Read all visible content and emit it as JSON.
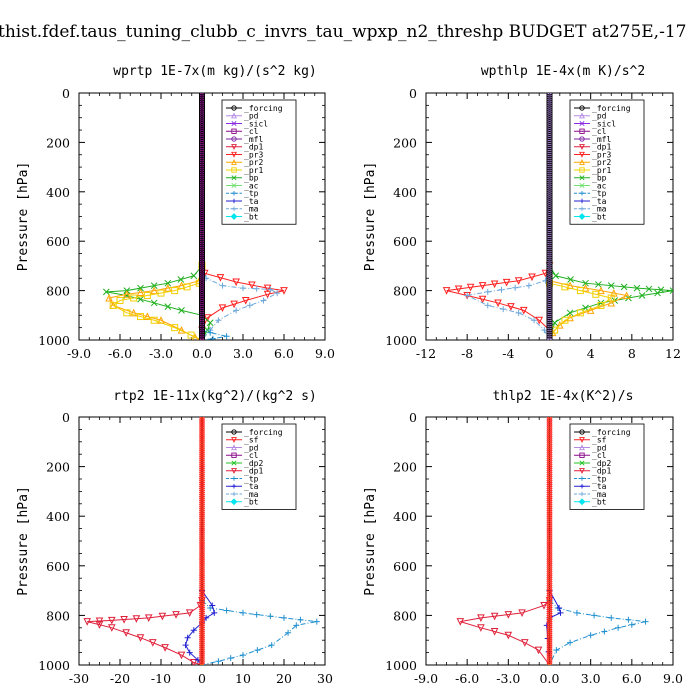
{
  "figure_title": "thist.fdef.taus_tuning_clubb_c_invrs_tau_wpxp_n2_threshp  BUDGET at275E,-17",
  "colors": {
    "_forcing": "#000000",
    "_pd": "#b48ce6",
    "_sicl": "#8a2be2",
    "_cl": "#8b0a8b",
    "_mfl": "#7a1fa2",
    "_dp1": "#e0203a",
    "_pr3": "#ff2020",
    "_pr2": "#ffa500",
    "_pr1": "#f0d000",
    "_bp": "#20b020",
    "_ac": "#70e070",
    "_tp": "#2090d0",
    "_ta": "#2020d0",
    "_ma": "#6fa8dc",
    "_bt": "#00e5ee",
    "_sf": "#ff2020",
    "_dp2": "#22c422"
  },
  "chart_data": [
    {
      "type": "line",
      "title": "wprtp  1E-7x(m kg)/(s^2 kg)",
      "ylabel": "Pressure [hPa]",
      "xlim": [
        -9,
        9
      ],
      "ylim": [
        1000,
        0
      ],
      "xticks": [
        "-9.0",
        "-6.0",
        "-3.0",
        "0.0",
        "3.0",
        "6.0",
        "9.0"
      ],
      "yticks": [
        "0",
        "200",
        "400",
        "600",
        "800",
        "1000"
      ],
      "legend": [
        "_forcing",
        "_pd",
        "_sicl",
        "_cl",
        "_mfl",
        "_dp1",
        "_pr3",
        "_pr2",
        "_pr1",
        "_bp",
        "_ac",
        "_tp",
        "_ta",
        "_ma",
        "_bt"
      ],
      "legend_position": "top-right",
      "series": [
        {
          "name": "_pr3",
          "points": [
            [
              0,
              700
            ],
            [
              0.2,
              730
            ],
            [
              2.5,
              765
            ],
            [
              4.8,
              790
            ],
            [
              6,
              800
            ],
            [
              4.8,
              815
            ],
            [
              3.2,
              840
            ],
            [
              1.5,
              870
            ],
            [
              0.4,
              910
            ],
            [
              0,
              960
            ],
            [
              0,
              1000
            ]
          ]
        },
        {
          "name": "_bp",
          "points": [
            [
              0,
              700
            ],
            [
              -0.6,
              740
            ],
            [
              -2.5,
              770
            ],
            [
              -5.5,
              800
            ],
            [
              -7,
              805
            ],
            [
              -5.5,
              820
            ],
            [
              -3.5,
              850
            ],
            [
              -1.5,
              880
            ],
            [
              0,
              900
            ],
            [
              0.6,
              930
            ],
            [
              0.4,
              960
            ],
            [
              0,
              1000
            ]
          ]
        },
        {
          "name": "_pr2",
          "points": [
            [
              0,
              700
            ],
            [
              -0.2,
              760
            ],
            [
              -1.5,
              780
            ],
            [
              -3.5,
              800
            ],
            [
              -5.5,
              815
            ],
            [
              -6.8,
              830
            ],
            [
              -6.5,
              860
            ],
            [
              -5,
              890
            ],
            [
              -3,
              920
            ],
            [
              -1.5,
              960
            ],
            [
              -0.5,
              990
            ],
            [
              0,
              1000
            ]
          ]
        },
        {
          "name": "_pr1",
          "points": [
            [
              0,
              700
            ],
            [
              -0.2,
              770
            ],
            [
              -2,
              800
            ],
            [
              -4,
              820
            ],
            [
              -6,
              840
            ],
            [
              -6.5,
              860
            ],
            [
              -5.5,
              890
            ],
            [
              -3.5,
              920
            ],
            [
              -2,
              950
            ],
            [
              -0.8,
              980
            ],
            [
              0,
              1000
            ]
          ]
        },
        {
          "name": "_ma",
          "points": [
            [
              0,
              700
            ],
            [
              0.3,
              750
            ],
            [
              1.5,
              780
            ],
            [
              3,
              790
            ],
            [
              5,
              795
            ],
            [
              5.5,
              810
            ],
            [
              4.5,
              840
            ],
            [
              2.5,
              880
            ],
            [
              1.2,
              920
            ],
            [
              0.6,
              960
            ],
            [
              0,
              1000
            ]
          ]
        },
        {
          "name": "_tp",
          "points": [
            [
              0,
              960
            ],
            [
              0.6,
              970
            ],
            [
              1.8,
              985
            ],
            [
              0.8,
              995
            ],
            [
              0,
              1000
            ]
          ]
        },
        {
          "name": "_forcing",
          "points": [
            [
              0,
              0
            ],
            [
              0,
              1000
            ]
          ]
        }
      ]
    },
    {
      "type": "line",
      "title": "wpthlp  1E-4x(m K)/s^2",
      "ylabel": "Pressure [hPa]",
      "xlim": [
        -12,
        12
      ],
      "ylim": [
        1000,
        0
      ],
      "xticks": [
        "-12",
        "-8",
        "-4",
        "0",
        "4",
        "8",
        "12"
      ],
      "yticks": [
        "0",
        "200",
        "400",
        "600",
        "800",
        "1000"
      ],
      "legend": [
        "_forcing",
        "_pd",
        "_sicl",
        "_cl",
        "_mfl",
        "_dp1",
        "_pr3",
        "_pr2",
        "_pr1",
        "_bp",
        "_ac",
        "_tp",
        "_ta",
        "_ma",
        "_bt"
      ],
      "legend_position": "top-right",
      "series": [
        {
          "name": "_pr3",
          "points": [
            [
              0,
              700
            ],
            [
              -0.4,
              730
            ],
            [
              -3,
              760
            ],
            [
              -6.5,
              780
            ],
            [
              -10,
              800
            ],
            [
              -8,
              820
            ],
            [
              -5,
              850
            ],
            [
              -2.5,
              880
            ],
            [
              -1,
              920
            ],
            [
              0,
              960
            ],
            [
              0,
              1000
            ]
          ]
        },
        {
          "name": "_bp",
          "points": [
            [
              0,
              700
            ],
            [
              0.6,
              740
            ],
            [
              3.5,
              770
            ],
            [
              8.5,
              790
            ],
            [
              12,
              800
            ],
            [
              9,
              820
            ],
            [
              5,
              850
            ],
            [
              2,
              890
            ],
            [
              0.5,
              930
            ],
            [
              0,
              1000
            ]
          ]
        },
        {
          "name": "_pr2",
          "points": [
            [
              0,
              760
            ],
            [
              2,
              780
            ],
            [
              5,
              800
            ],
            [
              7.5,
              820
            ],
            [
              6,
              850
            ],
            [
              4,
              880
            ],
            [
              2,
              910
            ],
            [
              1,
              940
            ],
            [
              0.3,
              970
            ],
            [
              0,
              1000
            ]
          ]
        },
        {
          "name": "_pr1",
          "points": [
            [
              0,
              770
            ],
            [
              3,
              800
            ],
            [
              6,
              830
            ],
            [
              5,
              860
            ],
            [
              3,
              890
            ],
            [
              1.5,
              920
            ],
            [
              0.5,
              960
            ],
            [
              0,
              1000
            ]
          ]
        },
        {
          "name": "_ma",
          "points": [
            [
              0,
              700
            ],
            [
              -0.4,
              760
            ],
            [
              -2,
              780
            ],
            [
              -6,
              805
            ],
            [
              -8,
              820
            ],
            [
              -6,
              860
            ],
            [
              -3,
              890
            ],
            [
              -1.5,
              920
            ],
            [
              -0.5,
              960
            ],
            [
              0,
              1000
            ]
          ]
        },
        {
          "name": "_pd",
          "points": [
            [
              0,
              0
            ],
            [
              0,
              1000
            ]
          ]
        },
        {
          "name": "_forcing",
          "points": [
            [
              0,
              0
            ],
            [
              0,
              1000
            ]
          ]
        }
      ]
    },
    {
      "type": "line",
      "title": "rtp2  1E-11x(kg^2)/(kg^2 s)",
      "ylabel": "Pressure [hPa]",
      "xlim": [
        -30,
        30
      ],
      "ylim": [
        1000,
        0
      ],
      "xticks": [
        "-30",
        "-20",
        "-10",
        "0",
        "10",
        "20",
        "30"
      ],
      "yticks": [
        "0",
        "200",
        "400",
        "600",
        "800",
        "1000"
      ],
      "legend": [
        "_forcing",
        "_sf",
        "_pd",
        "_cl",
        "_dp2",
        "_dp1",
        "_tp",
        "_ta",
        "_ma",
        "_bt"
      ],
      "legend_position": "top-right",
      "series": [
        {
          "name": "_dp1",
          "points": [
            [
              0,
              740
            ],
            [
              -0.4,
              760
            ],
            [
              -3,
              790
            ],
            [
              -13,
              810
            ],
            [
              -22,
              820
            ],
            [
              -28,
              825
            ],
            [
              -22,
              850
            ],
            [
              -15,
              890
            ],
            [
              -9,
              930
            ],
            [
              -5,
              960
            ],
            [
              -2,
              990
            ],
            [
              0,
              1000
            ]
          ]
        },
        {
          "name": "_tp",
          "points": [
            [
              0,
              740
            ],
            [
              2,
              770
            ],
            [
              10,
              790
            ],
            [
              20,
              810
            ],
            [
              28,
              825
            ],
            [
              23,
              840
            ],
            [
              21,
              870
            ],
            [
              17,
              920
            ],
            [
              10,
              960
            ],
            [
              4,
              985
            ],
            [
              0,
              1000
            ]
          ]
        },
        {
          "name": "_ta",
          "points": [
            [
              0,
              700
            ],
            [
              2.5,
              760
            ],
            [
              3,
              790
            ],
            [
              1,
              810
            ],
            [
              0,
              830
            ],
            [
              -2,
              860
            ],
            [
              -3.5,
              890
            ],
            [
              -4,
              920
            ],
            [
              -3,
              950
            ],
            [
              -1,
              980
            ],
            [
              0,
              1000
            ]
          ]
        },
        {
          "name": "_forcing",
          "points": [
            [
              0,
              0
            ],
            [
              0,
              1000
            ]
          ]
        }
      ]
    },
    {
      "type": "line",
      "title": "thlp2  1E-4x(K^2)/s",
      "ylabel": "Pressure [hPa]",
      "xlim": [
        -9,
        9
      ],
      "ylim": [
        1000,
        0
      ],
      "xticks": [
        "-9.0",
        "-6.0",
        "-3.0",
        "0.0",
        "3.0",
        "6.0",
        "9.0"
      ],
      "yticks": [
        "0",
        "200",
        "400",
        "600",
        "800",
        "1000"
      ],
      "legend": [
        "_forcing",
        "_sf",
        "_pd",
        "_cl",
        "_dp2",
        "_dp1",
        "_tp",
        "_ta",
        "_ma",
        "_bt"
      ],
      "legend_position": "top-right",
      "series": [
        {
          "name": "_dp1",
          "points": [
            [
              0,
              740
            ],
            [
              -0.4,
              760
            ],
            [
              -2,
              790
            ],
            [
              -5,
              810
            ],
            [
              -6.5,
              825
            ],
            [
              -5,
              850
            ],
            [
              -3,
              880
            ],
            [
              -1.8,
              910
            ],
            [
              -0.8,
              940
            ],
            [
              0,
              1000
            ]
          ]
        },
        {
          "name": "_tp",
          "points": [
            [
              0,
              740
            ],
            [
              0.6,
              770
            ],
            [
              2,
              790
            ],
            [
              4.5,
              810
            ],
            [
              7,
              825
            ],
            [
              5,
              850
            ],
            [
              3,
              880
            ],
            [
              1.5,
              910
            ],
            [
              0.5,
              940
            ],
            [
              0,
              1000
            ]
          ]
        },
        {
          "name": "_ta",
          "points": [
            [
              0,
              700
            ],
            [
              0.7,
              770
            ],
            [
              0.8,
              790
            ],
            [
              0,
              810
            ],
            [
              -0.2,
              840
            ],
            [
              0,
              1000
            ]
          ]
        },
        {
          "name": "_forcing",
          "points": [
            [
              0,
              0
            ],
            [
              0,
              1000
            ]
          ]
        }
      ]
    }
  ]
}
